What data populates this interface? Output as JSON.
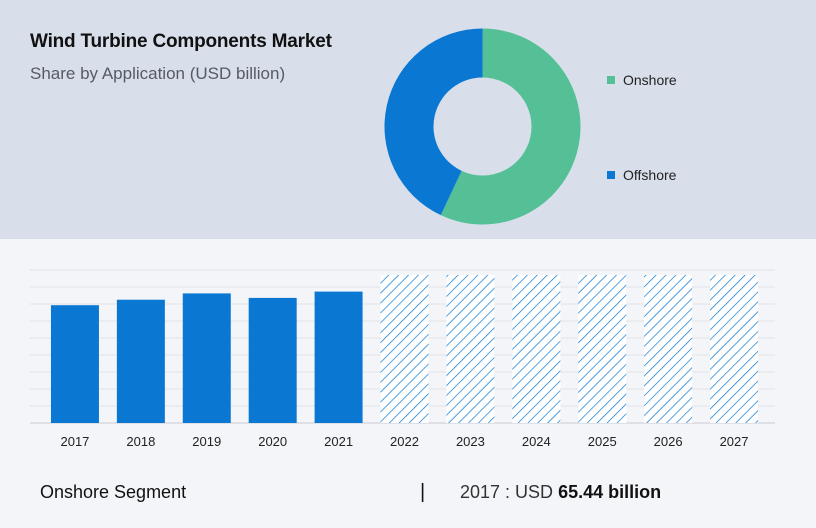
{
  "header": {
    "title": "Wind Turbine Components Market",
    "subtitle": "Share by Application (USD billion)"
  },
  "legend": [
    {
      "label": "Onshore",
      "color": "#55bf95"
    },
    {
      "label": "Offshore",
      "color": "#0a78d2"
    }
  ],
  "footer": {
    "segment": "Onshore Segment",
    "divider": "|",
    "year_prefix": "2017 : USD ",
    "value": "65.44 billion"
  },
  "chart_data": [
    {
      "type": "pie",
      "donut": true,
      "title": "Share by Application (USD billion)",
      "slices": [
        {
          "label": "Onshore",
          "value": 57,
          "color": "#55bf95"
        },
        {
          "label": "Offshore",
          "value": 43,
          "color": "#0a78d2"
        }
      ]
    },
    {
      "type": "bar",
      "categories": [
        "2017",
        "2018",
        "2019",
        "2020",
        "2021",
        "2022",
        "2023",
        "2024",
        "2025",
        "2026",
        "2027"
      ],
      "values": [
        65.44,
        68.5,
        72,
        69.5,
        73,
        null,
        null,
        null,
        null,
        null,
        null
      ],
      "forecast_categories": [
        "2022",
        "2023",
        "2024",
        "2025",
        "2026",
        "2027"
      ],
      "bar_color": "#0a78d2",
      "forecast_style": "hatched",
      "ylim": [
        0,
        85
      ],
      "grid": true
    }
  ]
}
